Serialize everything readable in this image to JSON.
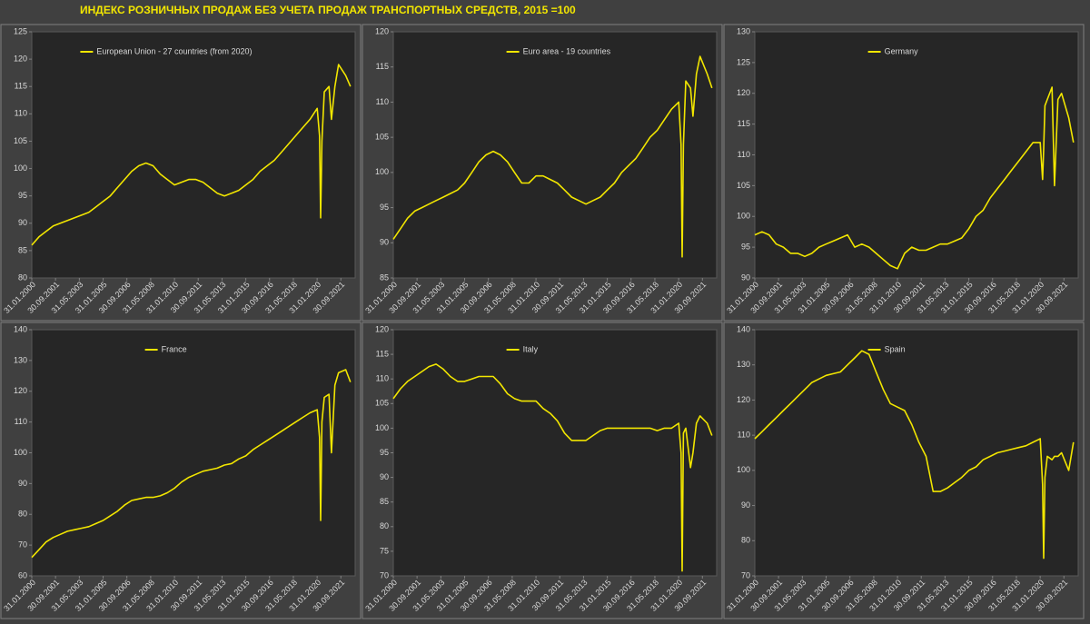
{
  "title": "ИНДЕКС РОЗНИЧНЫХ ПРОДАЖ БЕЗ УЧЕТА ПРОДАЖ ТРАНСПОРТНЫХ СРЕДСТВ, 2015 =100",
  "chart_data": [
    {
      "type": "line",
      "x": [
        "31.01.2000",
        "31.07.2000",
        "31.01.2001",
        "31.07.2001",
        "31.01.2002",
        "31.07.2002",
        "31.01.2003",
        "31.07.2003",
        "31.01.2004",
        "31.07.2004",
        "31.01.2005",
        "31.07.2005",
        "31.01.2006",
        "31.07.2006",
        "31.01.2007",
        "31.07.2007",
        "31.01.2008",
        "31.07.2008",
        "31.01.2009",
        "31.07.2009",
        "31.01.2010",
        "31.07.2010",
        "31.01.2011",
        "31.07.2011",
        "31.01.2012",
        "31.07.2012",
        "31.01.2013",
        "31.07.2013",
        "31.01.2014",
        "31.07.2014",
        "31.01.2015",
        "31.07.2015",
        "31.01.2016",
        "31.07.2016",
        "31.01.2017",
        "31.07.2017",
        "31.01.2018",
        "31.07.2018",
        "31.01.2019",
        "31.07.2019",
        "31.01.2020",
        "31.03.2020",
        "30.04.2020",
        "31.05.2020",
        "31.07.2020",
        "30.11.2020",
        "31.01.2021",
        "30.04.2021",
        "31.07.2021",
        "31.01.2022",
        "31.05.2022"
      ],
      "series": [
        {
          "name": "European Union - 27 countries (from 2020)",
          "color": "#f2e600",
          "values": [
            86,
            87.5,
            88.5,
            89.5,
            90,
            90.5,
            91,
            91.5,
            92,
            93,
            94,
            95,
            96.5,
            98,
            99.5,
            100.5,
            101,
            100.5,
            99,
            98,
            97,
            97.5,
            98,
            98,
            97.5,
            96.5,
            95.5,
            95,
            95.5,
            96,
            97,
            98,
            99.5,
            100.5,
            101.5,
            103,
            104.5,
            106,
            107.5,
            109,
            111,
            106,
            91,
            105,
            114,
            115,
            109,
            115,
            119,
            117,
            115
          ]
        }
      ],
      "xlim": [
        "31.01.2000",
        "30.09.2022"
      ],
      "xticks": [
        "31.01.2000",
        "30.09.2001",
        "31.05.2003",
        "31.01.2005",
        "30.09.2006",
        "31.05.2008",
        "31.01.2010",
        "30.09.2011",
        "31.05.2013",
        "31.01.2015",
        "30.09.2016",
        "31.05.2018",
        "31.01.2020",
        "30.09.2021"
      ],
      "ylim": [
        80,
        125
      ],
      "yticks": [
        80,
        85,
        90,
        95,
        100,
        105,
        110,
        115,
        120,
        125
      ]
    },
    {
      "type": "line",
      "x": [
        "31.01.2000",
        "31.07.2000",
        "31.01.2001",
        "31.07.2001",
        "31.01.2002",
        "31.07.2002",
        "31.01.2003",
        "31.07.2003",
        "31.01.2004",
        "31.07.2004",
        "31.01.2005",
        "31.07.2005",
        "31.01.2006",
        "31.07.2006",
        "31.01.2007",
        "31.07.2007",
        "31.01.2008",
        "31.07.2008",
        "31.01.2009",
        "31.07.2009",
        "31.01.2010",
        "31.07.2010",
        "31.01.2011",
        "31.07.2011",
        "31.01.2012",
        "31.07.2012",
        "31.01.2013",
        "31.07.2013",
        "31.01.2014",
        "31.07.2014",
        "31.01.2015",
        "31.07.2015",
        "31.01.2016",
        "31.07.2016",
        "31.01.2017",
        "31.07.2017",
        "31.01.2018",
        "31.07.2018",
        "31.01.2019",
        "31.07.2019",
        "31.01.2020",
        "31.03.2020",
        "30.04.2020",
        "31.05.2020",
        "31.07.2020",
        "30.11.2020",
        "31.01.2021",
        "30.04.2021",
        "31.07.2021",
        "31.01.2022",
        "31.05.2022"
      ],
      "series": [
        {
          "name": "Euro area - 19 countries",
          "color": "#f2e600",
          "values": [
            90.5,
            92,
            93.5,
            94.5,
            95,
            95.5,
            96,
            96.5,
            97,
            97.5,
            98.5,
            100,
            101.5,
            102.5,
            103,
            102.5,
            101.5,
            100,
            98.5,
            98.5,
            99.5,
            99.5,
            99,
            98.5,
            97.5,
            96.5,
            96,
            95.5,
            96,
            96.5,
            97.5,
            98.5,
            100,
            101,
            102,
            103.5,
            105,
            106,
            107.5,
            109,
            110,
            104,
            88,
            104,
            113,
            112,
            108,
            114,
            116.5,
            114,
            112
          ]
        }
      ],
      "xlim": [
        "31.01.2000",
        "30.09.2022"
      ],
      "xticks": [
        "31.01.2000",
        "30.09.2001",
        "31.05.2003",
        "31.01.2005",
        "30.09.2006",
        "31.05.2008",
        "31.01.2010",
        "30.09.2011",
        "31.05.2013",
        "31.01.2015",
        "30.09.2016",
        "31.05.2018",
        "31.01.2020",
        "30.09.2021"
      ],
      "ylim": [
        85,
        120
      ],
      "yticks": [
        85,
        90,
        95,
        100,
        105,
        110,
        115,
        120
      ]
    },
    {
      "type": "line",
      "x": [
        "31.01.2000",
        "31.07.2000",
        "31.01.2001",
        "31.07.2001",
        "31.01.2002",
        "31.07.2002",
        "31.01.2003",
        "31.07.2003",
        "31.01.2004",
        "31.07.2004",
        "31.01.2005",
        "31.07.2005",
        "31.01.2006",
        "31.07.2006",
        "31.01.2007",
        "31.07.2007",
        "31.01.2008",
        "31.07.2008",
        "31.01.2009",
        "31.07.2009",
        "31.01.2010",
        "31.07.2010",
        "31.01.2011",
        "31.07.2011",
        "31.01.2012",
        "31.07.2012",
        "31.01.2013",
        "31.07.2013",
        "31.01.2014",
        "31.07.2014",
        "31.01.2015",
        "31.07.2015",
        "31.01.2016",
        "31.07.2016",
        "31.01.2017",
        "31.07.2017",
        "31.01.2018",
        "31.07.2018",
        "31.01.2019",
        "31.07.2019",
        "31.01.2020",
        "31.03.2020",
        "30.04.2020",
        "31.05.2020",
        "31.07.2020",
        "30.11.2020",
        "31.01.2021",
        "30.04.2021",
        "31.07.2021",
        "31.01.2022",
        "31.05.2022"
      ],
      "series": [
        {
          "name": "Germany",
          "color": "#f2e600",
          "values": [
            97,
            97.5,
            97,
            95.5,
            95,
            94,
            94,
            93.5,
            94,
            95,
            95.5,
            96,
            96.5,
            97,
            95,
            95.5,
            95,
            94,
            93,
            92,
            91.5,
            94,
            95,
            94.5,
            94.5,
            95,
            95.5,
            95.5,
            96,
            96.5,
            98,
            100,
            101,
            103,
            104.5,
            106,
            107.5,
            109,
            110.5,
            112,
            112,
            106,
            111,
            118,
            119,
            121,
            105,
            119,
            120,
            116,
            112
          ]
        }
      ],
      "xlim": [
        "31.01.2000",
        "30.09.2022"
      ],
      "xticks": [
        "31.01.2000",
        "30.09.2001",
        "31.05.2003",
        "31.01.2005",
        "30.09.2006",
        "31.05.2008",
        "31.01.2010",
        "30.09.2011",
        "31.05.2013",
        "31.01.2015",
        "30.09.2016",
        "31.05.2018",
        "31.01.2020",
        "30.09.2021"
      ],
      "ylim": [
        90,
        130
      ],
      "yticks": [
        90,
        95,
        100,
        105,
        110,
        115,
        120,
        125,
        130
      ]
    },
    {
      "type": "line",
      "x": [
        "31.01.2000",
        "31.07.2000",
        "31.01.2001",
        "31.07.2001",
        "31.01.2002",
        "31.07.2002",
        "31.01.2003",
        "31.07.2003",
        "31.01.2004",
        "31.07.2004",
        "31.01.2005",
        "31.07.2005",
        "31.01.2006",
        "31.07.2006",
        "31.01.2007",
        "31.07.2007",
        "31.01.2008",
        "31.07.2008",
        "31.01.2009",
        "31.07.2009",
        "31.01.2010",
        "31.07.2010",
        "31.01.2011",
        "31.07.2011",
        "31.01.2012",
        "31.07.2012",
        "31.01.2013",
        "31.07.2013",
        "31.01.2014",
        "31.07.2014",
        "31.01.2015",
        "31.07.2015",
        "31.01.2016",
        "31.07.2016",
        "31.01.2017",
        "31.07.2017",
        "31.01.2018",
        "31.07.2018",
        "31.01.2019",
        "31.07.2019",
        "31.01.2020",
        "31.03.2020",
        "30.04.2020",
        "31.05.2020",
        "31.07.2020",
        "30.11.2020",
        "31.01.2021",
        "30.04.2021",
        "31.07.2021",
        "31.01.2022",
        "31.05.2022"
      ],
      "series": [
        {
          "name": "France",
          "color": "#f2e600",
          "values": [
            66,
            68.5,
            71,
            72.5,
            73.5,
            74.5,
            75,
            75.5,
            76,
            77,
            78,
            79.5,
            81,
            83,
            84.5,
            85,
            85.5,
            85.5,
            86,
            87,
            88.5,
            90.5,
            92,
            93,
            94,
            94.5,
            95,
            96,
            96.5,
            98,
            99,
            101,
            102.5,
            104,
            105.5,
            107,
            108.5,
            110,
            111.5,
            113,
            114,
            105,
            78,
            110,
            118,
            119,
            100,
            122,
            126,
            127,
            123
          ]
        }
      ],
      "xlim": [
        "31.01.2000",
        "30.09.2022"
      ],
      "xticks": [
        "31.01.2000",
        "30.09.2001",
        "31.05.2003",
        "31.01.2005",
        "30.09.2006",
        "31.05.2008",
        "31.01.2010",
        "30.09.2011",
        "31.05.2013",
        "31.01.2015",
        "30.09.2016",
        "31.05.2018",
        "31.01.2020",
        "30.09.2021"
      ],
      "ylim": [
        60,
        140
      ],
      "yticks": [
        60,
        70,
        80,
        90,
        100,
        110,
        120,
        130,
        140
      ]
    },
    {
      "type": "line",
      "x": [
        "31.01.2000",
        "31.07.2000",
        "31.01.2001",
        "31.07.2001",
        "31.01.2002",
        "31.07.2002",
        "31.01.2003",
        "31.07.2003",
        "31.01.2004",
        "31.07.2004",
        "31.01.2005",
        "31.07.2005",
        "31.01.2006",
        "31.07.2006",
        "31.01.2007",
        "31.07.2007",
        "31.01.2008",
        "31.07.2008",
        "31.01.2009",
        "31.07.2009",
        "31.01.2010",
        "31.07.2010",
        "31.01.2011",
        "31.07.2011",
        "31.01.2012",
        "31.07.2012",
        "31.01.2013",
        "31.07.2013",
        "31.01.2014",
        "31.07.2014",
        "31.01.2015",
        "31.07.2015",
        "31.01.2016",
        "31.07.2016",
        "31.01.2017",
        "31.07.2017",
        "31.01.2018",
        "31.07.2018",
        "31.01.2019",
        "31.07.2019",
        "31.01.2020",
        "31.03.2020",
        "30.04.2020",
        "31.05.2020",
        "31.07.2020",
        "30.11.2020",
        "31.01.2021",
        "30.04.2021",
        "31.07.2021",
        "31.01.2022",
        "31.05.2022"
      ],
      "series": [
        {
          "name": "Italy",
          "color": "#f2e600",
          "values": [
            106,
            108,
            109.5,
            110.5,
            111.5,
            112.5,
            113,
            112,
            110.5,
            109.5,
            109.5,
            110,
            110.5,
            110.5,
            110.5,
            109,
            107,
            106,
            105.5,
            105.5,
            105.5,
            104,
            103,
            101.5,
            99,
            97.5,
            97.5,
            97.5,
            98.5,
            99.5,
            100,
            100,
            100,
            100,
            100,
            100,
            100,
            99.5,
            100,
            100,
            101,
            95,
            71,
            99,
            100,
            92,
            95,
            101,
            102.5,
            101,
            98.5
          ]
        }
      ],
      "xlim": [
        "31.01.2000",
        "30.09.2022"
      ],
      "xticks": [
        "31.01.2000",
        "30.09.2001",
        "31.05.2003",
        "31.01.2005",
        "30.09.2006",
        "31.05.2008",
        "31.01.2010",
        "30.09.2011",
        "31.05.2013",
        "31.01.2015",
        "30.09.2016",
        "31.05.2018",
        "31.01.2020",
        "30.09.2021"
      ],
      "ylim": [
        70,
        120
      ],
      "yticks": [
        70,
        75,
        80,
        85,
        90,
        95,
        100,
        105,
        110,
        115,
        120
      ]
    },
    {
      "type": "line",
      "x": [
        "31.01.2000",
        "31.07.2000",
        "31.01.2001",
        "31.07.2001",
        "31.01.2002",
        "31.07.2002",
        "31.01.2003",
        "31.07.2003",
        "31.01.2004",
        "31.07.2004",
        "31.01.2005",
        "31.07.2005",
        "31.01.2006",
        "31.07.2006",
        "31.01.2007",
        "31.07.2007",
        "31.01.2008",
        "31.07.2008",
        "31.01.2009",
        "31.07.2009",
        "31.01.2010",
        "31.07.2010",
        "31.01.2011",
        "31.07.2011",
        "31.01.2012",
        "31.07.2012",
        "31.01.2013",
        "31.07.2013",
        "31.01.2014",
        "31.07.2014",
        "31.01.2015",
        "31.07.2015",
        "31.01.2016",
        "31.07.2016",
        "31.01.2017",
        "31.07.2017",
        "31.01.2018",
        "31.07.2018",
        "31.01.2019",
        "31.07.2019",
        "31.01.2020",
        "31.03.2020",
        "30.04.2020",
        "31.05.2020",
        "31.07.2020",
        "30.11.2020",
        "31.01.2021",
        "30.04.2021",
        "31.07.2021",
        "31.01.2022",
        "31.05.2022"
      ],
      "series": [
        {
          "name": "Spain",
          "color": "#f2e600",
          "values": [
            109,
            111,
            113,
            115,
            117,
            119,
            121,
            123,
            125,
            126,
            127,
            127.5,
            128,
            130,
            132,
            134,
            133,
            128,
            123,
            119,
            118,
            117,
            113,
            108,
            104,
            94,
            94,
            95,
            96.5,
            98,
            100,
            101,
            103,
            104,
            105,
            105.5,
            106,
            106.5,
            107,
            108,
            109,
            96,
            75,
            98,
            104,
            103,
            104,
            104,
            105,
            100,
            108
          ]
        }
      ],
      "xlim": [
        "31.01.2000",
        "30.09.2022"
      ],
      "xticks": [
        "31.01.2000",
        "30.09.2001",
        "31.05.2003",
        "31.01.2005",
        "30.09.2006",
        "31.05.2008",
        "31.01.2010",
        "30.09.2011",
        "31.05.2013",
        "31.01.2015",
        "30.09.2016",
        "31.05.2018",
        "31.01.2020",
        "30.09.2021"
      ],
      "ylim": [
        70,
        140
      ],
      "yticks": [
        70,
        80,
        90,
        100,
        110,
        120,
        130,
        140
      ]
    }
  ]
}
